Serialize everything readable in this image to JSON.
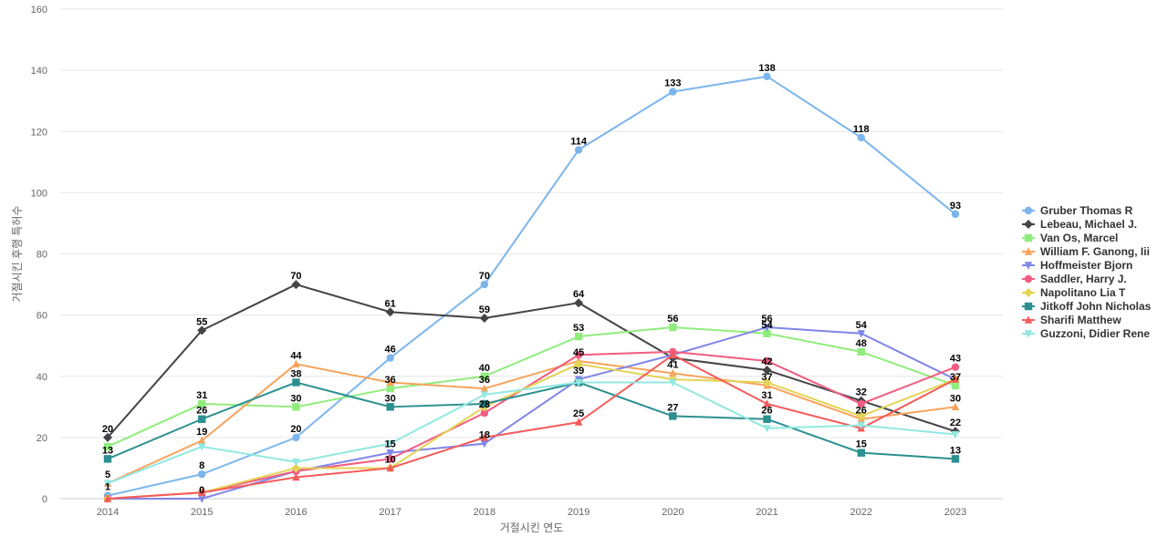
{
  "chart_data": {
    "type": "line",
    "xlabel": "거절시킨 연도",
    "ylabel": "거절시킨 후행 특허수",
    "ylim": [
      0,
      160
    ],
    "yticks": [
      0,
      20,
      40,
      60,
      80,
      100,
      120,
      140,
      160
    ],
    "grid": true,
    "legend_position": "right",
    "x": [
      "2014",
      "2015",
      "2016",
      "2017",
      "2018",
      "2019",
      "2020",
      "2021",
      "2022",
      "2023"
    ],
    "series": [
      {
        "name": "Gruber Thomas R",
        "color": "#7cb5ec",
        "marker": "circle",
        "values": [
          1,
          8,
          20,
          46,
          70,
          114,
          133,
          138,
          118,
          93
        ],
        "labels": [
          true,
          true,
          true,
          true,
          true,
          true,
          true,
          true,
          true,
          true
        ]
      },
      {
        "name": "Lebeau, Michael J.",
        "color": "#434348",
        "marker": "diamond",
        "values": [
          20,
          55,
          70,
          61,
          59,
          64,
          46,
          42,
          32,
          22
        ],
        "labels": [
          true,
          true,
          true,
          true,
          true,
          true,
          false,
          true,
          true,
          true
        ]
      },
      {
        "name": "Van Os, Marcel",
        "color": "#90ed7d",
        "marker": "square",
        "values": [
          17,
          31,
          30,
          36,
          40,
          53,
          56,
          54,
          48,
          37
        ],
        "labels": [
          false,
          true,
          true,
          true,
          true,
          true,
          true,
          true,
          true,
          true
        ]
      },
      {
        "name": "William F. Ganong, Iii",
        "color": "#f7a35c",
        "marker": "triangle",
        "values": [
          5,
          19,
          44,
          38,
          36,
          45,
          41,
          37,
          26,
          30
        ],
        "labels": [
          true,
          true,
          true,
          false,
          true,
          true,
          true,
          true,
          true,
          true
        ]
      },
      {
        "name": "Hoffmeister Bjorn",
        "color": "#8085e9",
        "marker": "triangle-down",
        "values": [
          0,
          0,
          9,
          15,
          18,
          39,
          47,
          56,
          54,
          39
        ],
        "labels": [
          false,
          true,
          false,
          true,
          true,
          true,
          false,
          true,
          true,
          false
        ]
      },
      {
        "name": "Saddler, Harry J.",
        "color": "#f15c80",
        "marker": "circle",
        "values": [
          0,
          2,
          9,
          13,
          28,
          47,
          48,
          45,
          31,
          43
        ],
        "labels": [
          false,
          false,
          false,
          false,
          true,
          false,
          false,
          false,
          false,
          true
        ]
      },
      {
        "name": "Napolitano Lia T",
        "color": "#e4d354",
        "marker": "diamond",
        "values": [
          0,
          2,
          10,
          10,
          30,
          44,
          39,
          38,
          27,
          39
        ],
        "labels": [
          false,
          false,
          false,
          false,
          false,
          false,
          false,
          false,
          false,
          false
        ]
      },
      {
        "name": "Jitkoff John Nicholas",
        "color": "#2b908f",
        "marker": "square",
        "values": [
          13,
          26,
          38,
          30,
          31,
          38,
          27,
          26,
          15,
          13
        ],
        "labels": [
          true,
          true,
          true,
          true,
          false,
          false,
          true,
          true,
          true,
          true
        ]
      },
      {
        "name": "Sharifi Matthew",
        "color": "#f45b5b",
        "marker": "triangle",
        "values": [
          0,
          2,
          7,
          10,
          20,
          25,
          47,
          31,
          23,
          39
        ],
        "labels": [
          false,
          false,
          false,
          true,
          false,
          true,
          false,
          true,
          false,
          false
        ]
      },
      {
        "name": "Guzzoni, Didier Rene",
        "color": "#91e8e1",
        "marker": "triangle-down",
        "values": [
          5,
          17,
          12,
          18,
          34,
          38,
          38,
          23,
          24,
          21
        ],
        "labels": [
          false,
          false,
          false,
          false,
          false,
          false,
          false,
          false,
          false,
          false
        ]
      }
    ]
  }
}
